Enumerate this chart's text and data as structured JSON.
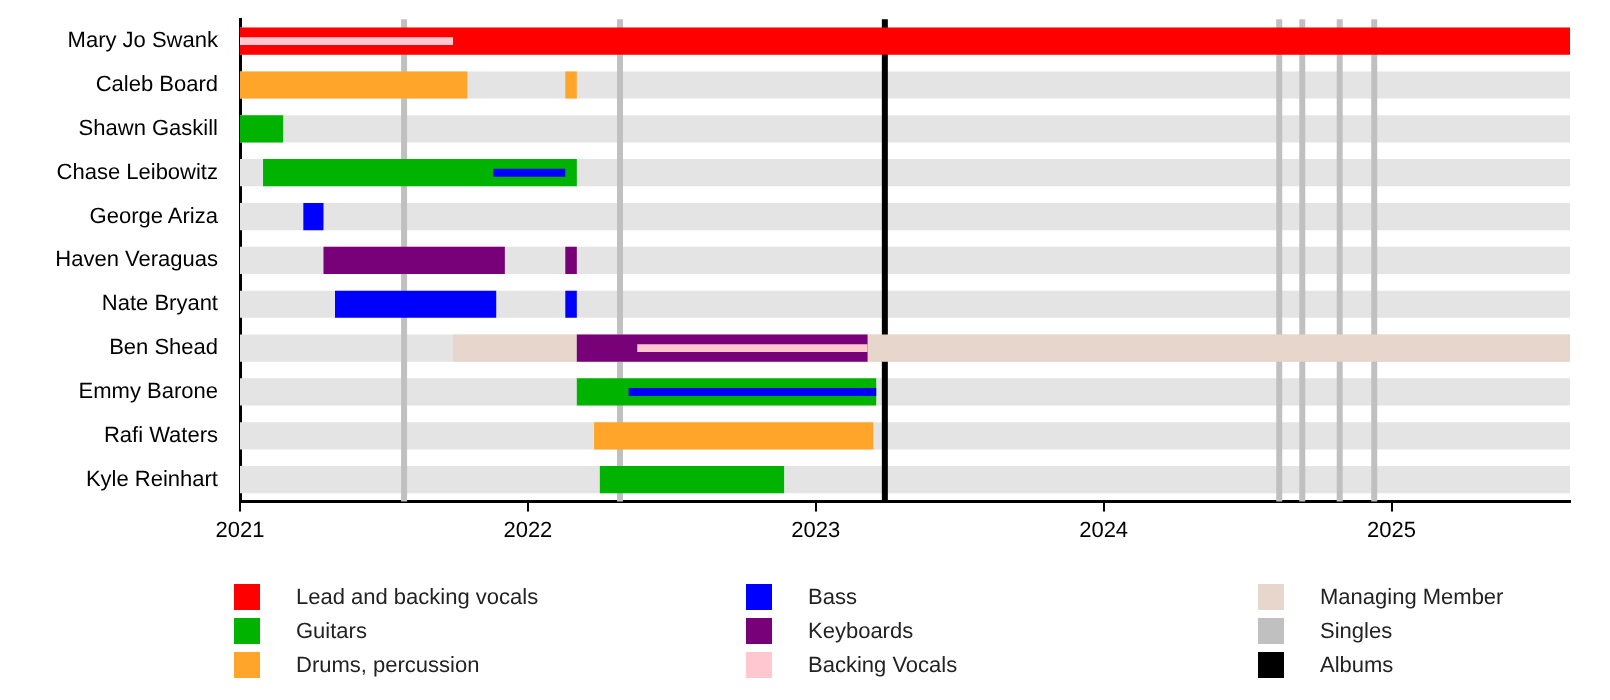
{
  "chart_data": {
    "type": "bar",
    "orientation": "horizontal",
    "legend": "bottom",
    "grid": false,
    "categories": [
      "Mary Jo Swank",
      "Caleb Board",
      "Shawn Gaskill",
      "Chase Leibowitz",
      "George Ariza",
      "Haven Veraguas",
      "Nate Bryant",
      "Ben Shead",
      "Emmy Barone",
      "Rafi Waters",
      "Kyle Reinhart"
    ],
    "xlim": [
      2021,
      2025.62
    ],
    "xticks": [
      2021,
      2022,
      2023,
      2024,
      2025
    ],
    "series": [
      {
        "name": "Lead and backing vocals",
        "color": "#ff0000",
        "base": [
          2021,
          null,
          null,
          null,
          null,
          null,
          null,
          null,
          null,
          null,
          null
        ],
        "values": [
          4.62,
          null,
          null,
          null,
          null,
          null,
          null,
          null,
          null,
          null,
          null
        ]
      },
      {
        "name": "Guitars",
        "color": "#00b300",
        "base": [
          null,
          null,
          2021,
          2021.08,
          null,
          null,
          null,
          null,
          2022.17,
          null,
          2022.25
        ],
        "values": [
          null,
          null,
          0.15,
          1.09,
          null,
          null,
          null,
          null,
          1.04,
          null,
          0.64
        ]
      },
      {
        "name": "Drums, percussion",
        "color": "#ffa52a",
        "base": [
          null,
          2021,
          null,
          null,
          null,
          null,
          null,
          null,
          null,
          2022.23,
          null
        ],
        "values": [
          null,
          0.79,
          null,
          null,
          null,
          null,
          null,
          null,
          null,
          0.97,
          null
        ]
      },
      {
        "name": "Bass",
        "color": "#0000ff",
        "base": [
          null,
          null,
          null,
          2021.88,
          2021.22,
          null,
          2021.33,
          null,
          2022.35,
          null,
          null
        ],
        "values": [
          null,
          null,
          null,
          0.25,
          0.07,
          null,
          0.56,
          null,
          0.86,
          null,
          null
        ]
      },
      {
        "name": "Keyboards",
        "color": "#780078",
        "base": [
          null,
          null,
          null,
          null,
          null,
          2021.29,
          null,
          2022.17,
          null,
          null,
          null
        ],
        "values": [
          null,
          null,
          null,
          null,
          null,
          0.63,
          null,
          1.01,
          null,
          null,
          null
        ]
      },
      {
        "name": "Backing Vocals",
        "color": "#ffc8d0",
        "base": [
          2021,
          null,
          null,
          null,
          null,
          null,
          null,
          2022.38,
          null,
          null,
          null
        ],
        "values": [
          0.74,
          null,
          null,
          null,
          null,
          null,
          null,
          0.8,
          null,
          null,
          null
        ]
      },
      {
        "name": "Managing Member",
        "color": "#e6d6cc",
        "base": [
          null,
          null,
          null,
          null,
          null,
          null,
          null,
          2021.74,
          null,
          null,
          null
        ],
        "values": [
          null,
          null,
          null,
          null,
          null,
          null,
          null,
          3.88,
          null,
          null,
          null
        ]
      },
      {
        "color": "#ffa52a",
        "base": [
          null,
          2022.13,
          null,
          null,
          null,
          null,
          null,
          null,
          null,
          null,
          null
        ],
        "values": [
          null,
          0.04,
          null,
          null,
          null,
          null,
          null,
          null,
          null,
          null,
          null
        ]
      },
      {
        "color": "#0000ff",
        "base": [
          null,
          null,
          null,
          null,
          null,
          null,
          2022.13,
          null,
          null,
          null,
          null
        ],
        "values": [
          null,
          null,
          null,
          null,
          null,
          null,
          0.04,
          null,
          null,
          null,
          null
        ]
      },
      {
        "color": "#780078",
        "base": [
          null,
          null,
          null,
          null,
          null,
          2022.13,
          null,
          null,
          null,
          null,
          null
        ],
        "values": [
          null,
          null,
          null,
          null,
          null,
          0.04,
          null,
          null,
          null,
          null,
          null
        ]
      }
    ],
    "ref_lines": [
      {
        "axis": "x",
        "value": 2021.57,
        "label": "Singles",
        "color": "#c0c0c0"
      },
      {
        "axis": "x",
        "value": 2022.32,
        "color": "#c0c0c0"
      },
      {
        "axis": "x",
        "value": 2024.61,
        "color": "#c0c0c0"
      },
      {
        "axis": "x",
        "value": 2024.69,
        "color": "#c0c0c0"
      },
      {
        "axis": "x",
        "value": 2024.82,
        "color": "#c0c0c0"
      },
      {
        "axis": "x",
        "value": 2024.94,
        "color": "#c0c0c0"
      },
      {
        "axis": "x",
        "value": 2023.24,
        "label": "Albums",
        "color": "#000000"
      }
    ]
  }
}
